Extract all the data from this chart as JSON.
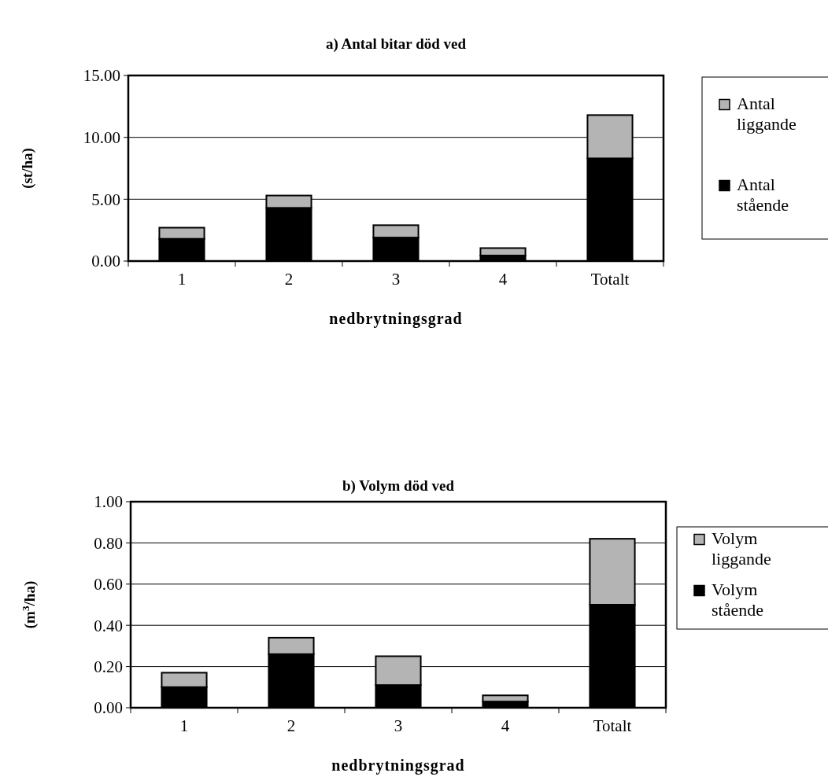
{
  "chart_data": [
    {
      "type": "bar",
      "title": "a) Antal bitar död ved",
      "xlabel": "nedbrytningsgrad",
      "ylabel": "(st/ha)",
      "categories": [
        "1",
        "2",
        "3",
        "4",
        "Totalt"
      ],
      "stacked": true,
      "series": [
        {
          "name": "Antal stående",
          "color": "#000000",
          "values": [
            1.8,
            4.3,
            1.9,
            0.45,
            8.3
          ]
        },
        {
          "name": "Antal liggande",
          "color": "#b4b4b4",
          "values": [
            0.9,
            1.0,
            1.0,
            0.6,
            3.5
          ]
        }
      ],
      "ylim": [
        0,
        15
      ],
      "yticks": [
        {
          "value": 0,
          "label": "0.00"
        },
        {
          "value": 5,
          "label": "5.00"
        },
        {
          "value": 10,
          "label": "10.00"
        },
        {
          "value": 15,
          "label": "15.00"
        }
      ],
      "grid": "y",
      "legend": "right"
    },
    {
      "type": "bar",
      "title": "b) Volym död ved",
      "xlabel": "nedbrytningsgrad",
      "ylabel": "(m$^{3}$/ha)",
      "categories": [
        "1",
        "2",
        "3",
        "4",
        "Totalt"
      ],
      "stacked": true,
      "series": [
        {
          "name": "Volym stående",
          "color": "#000000",
          "values": [
            0.1,
            0.26,
            0.11,
            0.03,
            0.5
          ]
        },
        {
          "name": "Volym liggande",
          "color": "#b4b4b4",
          "values": [
            0.07,
            0.08,
            0.14,
            0.03,
            0.32
          ]
        }
      ],
      "ylim": [
        0,
        1
      ],
      "yticks": [
        {
          "value": 0,
          "label": "0.00"
        },
        {
          "value": 0.2,
          "label": "0.20"
        },
        {
          "value": 0.4,
          "label": "0.40"
        },
        {
          "value": 0.6,
          "label": "0.60"
        },
        {
          "value": 0.8,
          "label": "0.80"
        },
        {
          "value": 1,
          "label": "1.00"
        }
      ],
      "grid": "y",
      "legend": "right"
    }
  ]
}
